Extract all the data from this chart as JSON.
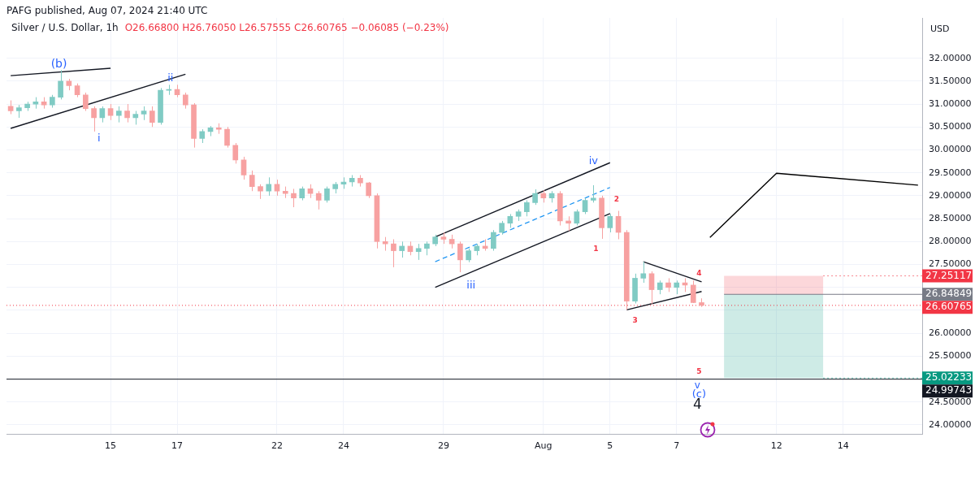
{
  "chart_data": {
    "type": "candlestick",
    "title": "Silver / U.S. Dollar, 1h",
    "subtitle": "O26.66800 H26.76050 L26.57555 C26.60765 −0.06085 (−0.23%)",
    "ylabel": "USD",
    "categories": [
      null,
      null,
      null,
      null,
      null,
      null,
      null,
      null,
      null,
      null,
      null,
      null,
      "15",
      null,
      null,
      null,
      null,
      null,
      null,
      null,
      "17",
      null,
      null,
      null,
      null,
      null,
      null,
      null,
      null,
      null,
      null,
      null,
      "22",
      null,
      null,
      null,
      null,
      null,
      null,
      null,
      "24",
      null,
      null,
      null,
      null,
      null,
      null,
      null,
      null,
      null,
      null,
      null,
      "29",
      null,
      null,
      null,
      null,
      null,
      null,
      null,
      null,
      null,
      null,
      null,
      "Aug",
      null,
      null,
      null,
      null,
      null,
      null,
      null,
      "5",
      null,
      null,
      null,
      null,
      null,
      null,
      null,
      "7",
      null,
      null,
      null,
      null,
      null,
      null,
      null,
      null,
      null,
      null,
      null,
      "12",
      null,
      null,
      null,
      null,
      null,
      null,
      null,
      "14",
      null,
      null,
      null,
      null,
      null,
      null,
      null,
      null,
      null
    ],
    "ohlc": [
      [
        30.95,
        31.08,
        30.78,
        30.85
      ],
      [
        30.85,
        30.98,
        30.7,
        30.92
      ],
      [
        30.92,
        31.05,
        30.85,
        31.0
      ],
      [
        31.0,
        31.15,
        30.9,
        31.05
      ],
      [
        31.05,
        31.15,
        30.9,
        30.98
      ],
      [
        30.98,
        31.2,
        30.92,
        31.15
      ],
      [
        31.15,
        31.74,
        31.1,
        31.5
      ],
      [
        31.5,
        31.55,
        31.3,
        31.4
      ],
      [
        31.4,
        31.45,
        31.15,
        31.2
      ],
      [
        31.2,
        31.25,
        30.85,
        30.9
      ],
      [
        30.9,
        30.95,
        30.4,
        30.7
      ],
      [
        30.7,
        30.95,
        30.6,
        30.9
      ],
      [
        30.9,
        31.0,
        30.65,
        30.75
      ],
      [
        30.75,
        30.95,
        30.6,
        30.85
      ],
      [
        30.85,
        31.0,
        30.6,
        30.7
      ],
      [
        30.7,
        30.85,
        30.55,
        30.78
      ],
      [
        30.78,
        30.95,
        30.65,
        30.85
      ],
      [
        30.85,
        30.95,
        30.5,
        30.6
      ],
      [
        30.6,
        31.35,
        30.55,
        31.3
      ],
      [
        31.3,
        31.42,
        31.2,
        31.32
      ],
      [
        31.32,
        31.42,
        31.15,
        31.2
      ],
      [
        31.2,
        31.25,
        30.9,
        30.98
      ],
      [
        30.98,
        31.02,
        30.05,
        30.25
      ],
      [
        30.25,
        30.45,
        30.15,
        30.4
      ],
      [
        30.4,
        30.52,
        30.3,
        30.48
      ],
      [
        30.48,
        30.58,
        30.35,
        30.45
      ],
      [
        30.45,
        30.5,
        30.05,
        30.1
      ],
      [
        30.1,
        30.15,
        29.7,
        29.78
      ],
      [
        29.78,
        29.85,
        29.35,
        29.45
      ],
      [
        29.45,
        29.55,
        29.1,
        29.2
      ],
      [
        29.2,
        29.25,
        28.93,
        29.1
      ],
      [
        29.1,
        29.4,
        29.0,
        29.25
      ],
      [
        29.25,
        29.35,
        29.0,
        29.1
      ],
      [
        29.1,
        29.2,
        28.95,
        29.05
      ],
      [
        29.05,
        29.15,
        28.75,
        28.95
      ],
      [
        28.95,
        29.2,
        28.9,
        29.15
      ],
      [
        29.15,
        29.25,
        28.95,
        29.05
      ],
      [
        29.05,
        29.1,
        28.7,
        28.9
      ],
      [
        28.9,
        29.2,
        28.85,
        29.15
      ],
      [
        29.15,
        29.3,
        29.05,
        29.25
      ],
      [
        29.25,
        29.4,
        29.15,
        29.3
      ],
      [
        29.3,
        29.45,
        29.2,
        29.38
      ],
      [
        29.38,
        29.45,
        29.2,
        29.28
      ],
      [
        29.28,
        29.3,
        28.95,
        29.0
      ],
      [
        29.0,
        29.05,
        27.85,
        28.0
      ],
      [
        28.0,
        28.1,
        27.8,
        27.95
      ],
      [
        27.95,
        28.05,
        27.44,
        27.8
      ],
      [
        27.8,
        28.0,
        27.65,
        27.9
      ],
      [
        27.9,
        28.0,
        27.7,
        27.78
      ],
      [
        27.78,
        27.95,
        27.6,
        27.85
      ],
      [
        27.85,
        28.0,
        27.7,
        27.95
      ],
      [
        27.95,
        28.15,
        27.9,
        28.1
      ],
      [
        28.1,
        28.2,
        27.95,
        28.05
      ],
      [
        28.05,
        28.15,
        27.85,
        27.95
      ],
      [
        27.95,
        28.0,
        27.33,
        27.6
      ],
      [
        27.6,
        27.85,
        27.55,
        27.8
      ],
      [
        27.8,
        27.95,
        27.7,
        27.9
      ],
      [
        27.9,
        28.05,
        27.8,
        27.85
      ],
      [
        27.85,
        28.25,
        27.8,
        28.2
      ],
      [
        28.2,
        28.45,
        28.15,
        28.4
      ],
      [
        28.4,
        28.6,
        28.3,
        28.55
      ],
      [
        28.55,
        28.7,
        28.45,
        28.65
      ],
      [
        28.65,
        28.9,
        28.55,
        28.85
      ],
      [
        28.85,
        29.14,
        28.8,
        29.05
      ],
      [
        29.05,
        29.12,
        28.85,
        28.95
      ],
      [
        28.95,
        29.1,
        28.85,
        29.05
      ],
      [
        29.05,
        29.1,
        28.35,
        28.45
      ],
      [
        28.45,
        28.55,
        28.23,
        28.4
      ],
      [
        28.4,
        28.7,
        28.35,
        28.65
      ],
      [
        28.65,
        28.95,
        28.6,
        28.9
      ],
      [
        28.9,
        29.23,
        28.85,
        28.95
      ],
      [
        28.95,
        29.0,
        28.06,
        28.3
      ],
      [
        28.3,
        28.6,
        28.2,
        28.55
      ],
      [
        28.55,
        28.67,
        28.05,
        28.2
      ],
      [
        28.2,
        28.25,
        26.51,
        26.7
      ],
      [
        26.7,
        27.3,
        26.65,
        27.2
      ],
      [
        27.2,
        27.56,
        27.1,
        27.3
      ],
      [
        27.3,
        27.35,
        26.63,
        26.95
      ],
      [
        26.95,
        27.15,
        26.85,
        27.1
      ],
      [
        27.1,
        27.2,
        26.9,
        27.0
      ],
      [
        27.0,
        27.15,
        26.85,
        27.1
      ],
      [
        27.1,
        27.2,
        26.9,
        27.05
      ],
      [
        27.05,
        27.15,
        26.66,
        26.668
      ],
      [
        26.668,
        26.7605,
        26.57555,
        26.60765
      ],
      null,
      null,
      null,
      null,
      null,
      null,
      null,
      null,
      null,
      null,
      null,
      null,
      null,
      null,
      null,
      null,
      null,
      null,
      null,
      null,
      null,
      null,
      null,
      null,
      null,
      null
    ],
    "colors": [
      "#f7a1a1",
      "#80cbc4",
      "#80cbc4",
      "#80cbc4",
      "#f7a1a1",
      "#80cbc4",
      "#80cbc4",
      "#f7a1a1",
      "#f7a1a1",
      "#f7a1a1",
      "#f7a1a1",
      "#80cbc4",
      "#f7a1a1",
      "#80cbc4",
      "#f7a1a1",
      "#80cbc4",
      "#80cbc4",
      "#f7a1a1",
      "#80cbc4",
      "#80cbc4",
      "#f7a1a1",
      "#f7a1a1",
      "#f7a1a1",
      "#80cbc4",
      "#80cbc4",
      "#f7a1a1",
      "#f7a1a1",
      "#f7a1a1",
      "#f7a1a1",
      "#f7a1a1",
      "#f7a1a1",
      "#80cbc4",
      "#f7a1a1",
      "#f7a1a1",
      "#f7a1a1",
      "#80cbc4",
      "#f7a1a1",
      "#f7a1a1",
      "#80cbc4",
      "#80cbc4",
      "#80cbc4",
      "#80cbc4",
      "#f7a1a1",
      "#f7a1a1",
      "#f7a1a1",
      "#f7a1a1",
      "#f7a1a1",
      "#80cbc4",
      "#f7a1a1",
      "#80cbc4",
      "#80cbc4",
      "#80cbc4",
      "#f7a1a1",
      "#f7a1a1",
      "#f7a1a1",
      "#80cbc4",
      "#80cbc4",
      "#f7a1a1",
      "#80cbc4",
      "#80cbc4",
      "#80cbc4",
      "#80cbc4",
      "#80cbc4",
      "#80cbc4",
      "#f7a1a1",
      "#80cbc4",
      "#f7a1a1",
      "#f7a1a1",
      "#80cbc4",
      "#80cbc4",
      "#80cbc4",
      "#f7a1a1",
      "#80cbc4",
      "#f7a1a1",
      "#f7a1a1",
      "#80cbc4",
      "#80cbc4",
      "#f7a1a1",
      "#80cbc4",
      "#f7a1a1",
      "#80cbc4",
      "#f7a1a1",
      "#f7a1a1",
      "#f7a1a1",
      null,
      null,
      null,
      null,
      null,
      null,
      null,
      null,
      null,
      null,
      null,
      null,
      null,
      null,
      null,
      null,
      null,
      null,
      null,
      null,
      null,
      null,
      null,
      null,
      null,
      null
    ],
    "series": [
      {
        "type": "line",
        "color": "#131722",
        "values": [
          31.62,
          null,
          null,
          null,
          null,
          null,
          null,
          null,
          null,
          null,
          null,
          null,
          31.78,
          null,
          null,
          null,
          null,
          null,
          null,
          null,
          null,
          null,
          null,
          null,
          null,
          null,
          null,
          null,
          null,
          null,
          null,
          null,
          null,
          null,
          null,
          null,
          null,
          null,
          null,
          null,
          null,
          null,
          null,
          null,
          null,
          null,
          null,
          null,
          null,
          null,
          null,
          null,
          null,
          null,
          null,
          null,
          null,
          null,
          null,
          null,
          null,
          null,
          null,
          null,
          null,
          null,
          null,
          null,
          null,
          null,
          null,
          null,
          null,
          null,
          null,
          null,
          null,
          null,
          null,
          null,
          null,
          null,
          null,
          null,
          null,
          null,
          null,
          null,
          null,
          null,
          null,
          null,
          null,
          null,
          null,
          null,
          null,
          null,
          null,
          null,
          null,
          null,
          null,
          null,
          null,
          null,
          null,
          null,
          null,
          null
        ]
      },
      {
        "type": "line",
        "color": "#131722",
        "values": [
          30.47,
          null,
          null,
          null,
          null,
          null,
          null,
          null,
          null,
          null,
          null,
          null,
          null,
          null,
          null,
          null,
          null,
          null,
          null,
          null,
          null,
          31.65,
          null,
          null,
          null,
          null,
          null,
          null,
          null,
          null,
          null,
          null,
          null,
          null,
          null,
          null,
          null,
          null,
          null,
          null,
          null,
          null,
          null,
          null,
          null,
          null,
          null,
          null,
          null,
          null,
          null,
          null,
          null,
          null,
          null,
          null,
          null,
          null,
          null,
          null,
          null,
          null,
          null,
          null,
          null,
          null,
          null,
          null,
          null,
          null,
          null,
          null,
          null,
          null,
          null,
          null,
          null,
          null,
          null,
          null,
          null,
          null,
          null,
          null,
          null,
          null,
          null,
          null,
          null,
          null,
          null,
          null,
          null,
          null,
          null,
          null,
          null,
          null,
          null,
          null,
          null,
          null,
          null,
          null,
          null,
          null,
          null,
          null,
          null,
          null
        ]
      },
      {
        "type": "line",
        "color": "#131722",
        "values": [
          null,
          null,
          null,
          null,
          null,
          null,
          null,
          null,
          null,
          null,
          null,
          null,
          null,
          null,
          null,
          null,
          null,
          null,
          null,
          null,
          null,
          null,
          null,
          null,
          null,
          null,
          null,
          null,
          null,
          null,
          null,
          null,
          null,
          null,
          null,
          null,
          null,
          null,
          null,
          null,
          null,
          null,
          null,
          null,
          null,
          null,
          null,
          null,
          null,
          null,
          null,
          28.1,
          null,
          null,
          null,
          null,
          null,
          null,
          null,
          null,
          null,
          null,
          null,
          null,
          null,
          null,
          null,
          null,
          null,
          null,
          null,
          null,
          29.72,
          null,
          null,
          null,
          null,
          null,
          null,
          null,
          null,
          null,
          null,
          null,
          null,
          null,
          null,
          null,
          null,
          null,
          null,
          null,
          null,
          null,
          null,
          null,
          null,
          null,
          null,
          null,
          null,
          null,
          null,
          null,
          null,
          null,
          null,
          null,
          null,
          null
        ]
      },
      {
        "type": "line",
        "color": "#131722",
        "values": [
          null,
          null,
          null,
          null,
          null,
          null,
          null,
          null,
          null,
          null,
          null,
          null,
          null,
          null,
          null,
          null,
          null,
          null,
          null,
          null,
          null,
          null,
          null,
          null,
          null,
          null,
          null,
          null,
          null,
          null,
          null,
          null,
          null,
          null,
          null,
          null,
          null,
          null,
          null,
          null,
          null,
          null,
          null,
          null,
          null,
          null,
          null,
          null,
          null,
          null,
          null,
          27.0,
          null,
          null,
          null,
          null,
          null,
          null,
          null,
          null,
          null,
          null,
          null,
          null,
          null,
          null,
          null,
          null,
          null,
          null,
          null,
          null,
          28.61,
          null,
          null,
          null,
          null,
          null,
          null,
          null,
          null,
          null,
          null,
          null,
          null,
          null,
          null,
          null,
          null,
          null,
          null,
          null,
          null,
          null,
          null,
          null,
          null,
          null,
          null,
          null,
          null,
          null,
          null,
          null,
          null,
          null,
          null,
          null,
          null,
          null
        ]
      },
      {
        "type": "line",
        "color": "#2196f3",
        "line_style": "dashed",
        "values": [
          null,
          null,
          null,
          null,
          null,
          null,
          null,
          null,
          null,
          null,
          null,
          null,
          null,
          null,
          null,
          null,
          null,
          null,
          null,
          null,
          null,
          null,
          null,
          null,
          null,
          null,
          null,
          null,
          null,
          null,
          null,
          null,
          null,
          null,
          null,
          null,
          null,
          null,
          null,
          null,
          null,
          null,
          null,
          null,
          null,
          null,
          null,
          null,
          null,
          null,
          null,
          27.56,
          null,
          null,
          null,
          null,
          null,
          null,
          null,
          null,
          null,
          null,
          null,
          null,
          null,
          null,
          null,
          null,
          null,
          null,
          null,
          null,
          29.18,
          null,
          null,
          null,
          null,
          null,
          null,
          null,
          null,
          null,
          null,
          null,
          null,
          null,
          null,
          null,
          null,
          null,
          null,
          null,
          null,
          null,
          null,
          null,
          null,
          null,
          null,
          null,
          null,
          null,
          null,
          null,
          null,
          null,
          null,
          null,
          null,
          null
        ]
      },
      {
        "type": "line",
        "color": "#131722",
        "values": [
          null,
          null,
          null,
          null,
          null,
          null,
          null,
          null,
          null,
          null,
          null,
          null,
          null,
          null,
          null,
          null,
          null,
          null,
          null,
          null,
          null,
          null,
          null,
          null,
          null,
          null,
          null,
          null,
          null,
          null,
          null,
          null,
          null,
          null,
          null,
          null,
          null,
          null,
          null,
          null,
          null,
          null,
          null,
          null,
          null,
          null,
          null,
          null,
          null,
          null,
          null,
          null,
          null,
          null,
          null,
          null,
          null,
          null,
          null,
          null,
          null,
          null,
          null,
          null,
          null,
          null,
          null,
          null,
          null,
          null,
          null,
          null,
          null,
          null,
          null,
          null,
          27.56,
          null,
          null,
          null,
          null,
          null,
          null,
          27.12,
          null,
          null,
          null,
          null,
          null,
          null,
          null,
          null,
          null,
          null,
          null,
          null,
          null,
          null,
          null,
          null,
          null,
          null,
          null,
          null,
          null,
          null,
          null,
          null,
          null,
          null
        ]
      },
      {
        "type": "line",
        "color": "#131722",
        "values": [
          null,
          null,
          null,
          null,
          null,
          null,
          null,
          null,
          null,
          null,
          null,
          null,
          null,
          null,
          null,
          null,
          null,
          null,
          null,
          null,
          null,
          null,
          null,
          null,
          null,
          null,
          null,
          null,
          null,
          null,
          null,
          null,
          null,
          null,
          null,
          null,
          null,
          null,
          null,
          null,
          null,
          null,
          null,
          null,
          null,
          null,
          null,
          null,
          null,
          null,
          null,
          null,
          null,
          null,
          null,
          null,
          null,
          null,
          null,
          null,
          null,
          null,
          null,
          null,
          null,
          null,
          null,
          null,
          null,
          null,
          null,
          null,
          null,
          null,
          26.51,
          null,
          null,
          null,
          null,
          null,
          null,
          null,
          null,
          26.91,
          null,
          null,
          null,
          null,
          null,
          null,
          null,
          null,
          null,
          null,
          null,
          null,
          null,
          null,
          null,
          null,
          null,
          null,
          null,
          null,
          null,
          null,
          null,
          null,
          null,
          null
        ]
      },
      {
        "type": "line",
        "color": "#000000",
        "values": [
          null,
          null,
          null,
          null,
          null,
          null,
          null,
          null,
          null,
          null,
          null,
          null,
          null,
          null,
          null,
          null,
          null,
          null,
          null,
          null,
          null,
          null,
          null,
          null,
          null,
          null,
          null,
          null,
          null,
          null,
          null,
          null,
          null,
          null,
          null,
          null,
          null,
          null,
          null,
          null,
          null,
          null,
          null,
          null,
          null,
          null,
          null,
          null,
          null,
          null,
          null,
          null,
          null,
          null,
          null,
          null,
          null,
          null,
          null,
          null,
          null,
          null,
          null,
          null,
          null,
          null,
          null,
          null,
          null,
          null,
          null,
          null,
          null,
          null,
          null,
          null,
          null,
          null,
          null,
          null,
          null,
          null,
          null,
          null,
          28.09,
          null,
          null,
          null,
          null,
          null,
          null,
          null,
          29.49,
          null,
          null,
          null,
          null,
          null,
          null,
          null,
          null,
          null,
          null,
          null,
          null,
          null,
          null,
          null,
          null,
          29.23
        ]
      }
    ],
    "ylim": [
      23.79,
      32.88
    ],
    "yticks": [
      {
        "value": 24,
        "label": "24.00000"
      },
      {
        "value": 24.5,
        "label": "24.50000"
      },
      {
        "value": 25,
        "label": null
      },
      {
        "value": 25.5,
        "label": "25.50000"
      },
      {
        "value": 26,
        "label": "26.00000"
      },
      {
        "value": 26.5,
        "label": null
      },
      {
        "value": 27,
        "label": null
      },
      {
        "value": 27.5,
        "label": "27.50000"
      },
      {
        "value": 28,
        "label": "28.00000"
      },
      {
        "value": 28.5,
        "label": "28.50000"
      },
      {
        "value": 29,
        "label": "29.00000"
      },
      {
        "value": 29.5,
        "label": "29.50000"
      },
      {
        "value": 30,
        "label": "30.00000"
      },
      {
        "value": 30.5,
        "label": "30.50000"
      },
      {
        "value": 31,
        "label": "31.00000"
      },
      {
        "value": 31.5,
        "label": "31.50000"
      },
      {
        "value": 32,
        "label": "32.00000"
      }
    ],
    "ref_lines": [
      {
        "axis": "y",
        "value": 24.99743,
        "label": "24.99743",
        "color": "#131722",
        "line_style": "solid"
      },
      {
        "axis": "y",
        "value": 26.60765,
        "label": "26.60765",
        "color": "#f23645",
        "line_style": "dotted"
      },
      {
        "axis": "y",
        "value": 26.84849,
        "label": "26.84849",
        "color": "#787b86",
        "line_style": "solid"
      }
    ],
    "bands": [
      {
        "axis": "y",
        "from": 26.84849,
        "to": 27.25117,
        "label": "27.25117",
        "color": "#f23645"
      },
      {
        "axis": "y",
        "from": 26.84849,
        "to": 25.02233,
        "label": "25.02233",
        "color": "#089981"
      }
    ],
    "annotations": [
      "PAFG published, Aug 07, 2024 21:40 UTC",
      "(b)",
      "i",
      "ii",
      "iii",
      "iv",
      "1",
      "2",
      "3",
      "4",
      "5",
      "v",
      "(c)",
      "4"
    ],
    "grid": true
  }
}
